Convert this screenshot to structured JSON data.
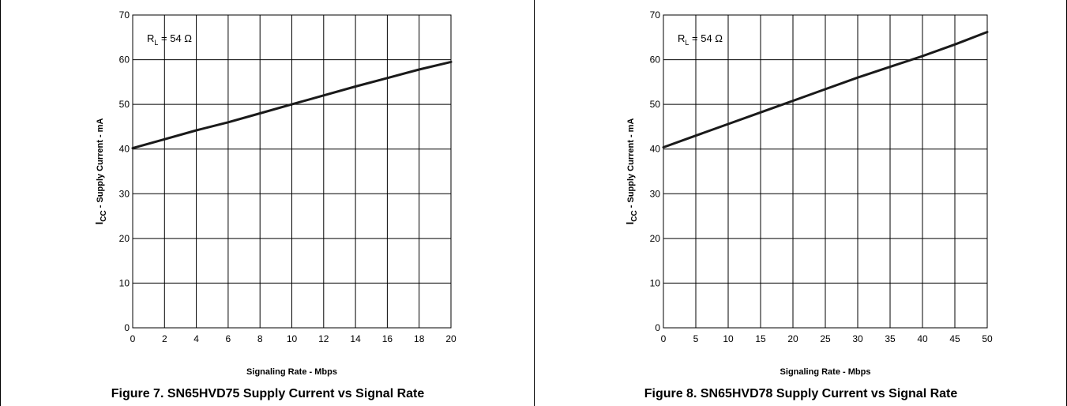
{
  "chart_data": [
    {
      "type": "line",
      "caption": "Figure 7. SN65HVD75 Supply Current vs Signal Rate",
      "xlabel": "Signaling Rate - Mbps",
      "ylabel_main": "I",
      "ylabel_sub": "CC",
      "ylabel_rest": " - Supply Current - mA",
      "annotation": {
        "main": "R",
        "sub": "L",
        "rest": " = 54 Ω"
      },
      "xlim": [
        0,
        20
      ],
      "ylim": [
        0,
        70
      ],
      "x_ticks": [
        "0",
        "2",
        "4",
        "6",
        "8",
        "10",
        "12",
        "14",
        "16",
        "18",
        "20"
      ],
      "y_ticks": [
        "0",
        "10",
        "20",
        "30",
        "40",
        "50",
        "60",
        "70"
      ],
      "grid": true,
      "series": [
        {
          "x": [
            0,
            2,
            4,
            6,
            8,
            10,
            12,
            14,
            16,
            18,
            20
          ],
          "values": [
            40.2,
            42.2,
            44.2,
            46.0,
            48.0,
            50.0,
            52.0,
            54.0,
            55.9,
            57.8,
            59.5
          ]
        }
      ]
    },
    {
      "type": "line",
      "caption": "Figure 8. SN65HVD78 Supply Current vs Signal Rate",
      "xlabel": "Signaling Rate - Mbps",
      "ylabel_main": "I",
      "ylabel_sub": "CC",
      "ylabel_rest": " - Supply Current - mA",
      "annotation": {
        "main": "R",
        "sub": "L",
        "rest": " = 54 Ω"
      },
      "xlim": [
        0,
        50
      ],
      "ylim": [
        0,
        70
      ],
      "x_ticks": [
        "0",
        "5",
        "10",
        "15",
        "20",
        "25",
        "30",
        "35",
        "40",
        "45",
        "50"
      ],
      "y_ticks": [
        "0",
        "10",
        "20",
        "30",
        "40",
        "50",
        "60",
        "70"
      ],
      "grid": true,
      "series": [
        {
          "x": [
            0,
            5,
            10,
            15,
            20,
            25,
            30,
            35,
            40,
            45,
            50
          ],
          "values": [
            40.4,
            43.0,
            45.6,
            48.2,
            50.8,
            53.4,
            56.0,
            58.4,
            60.8,
            63.4,
            66.2
          ]
        }
      ]
    }
  ]
}
